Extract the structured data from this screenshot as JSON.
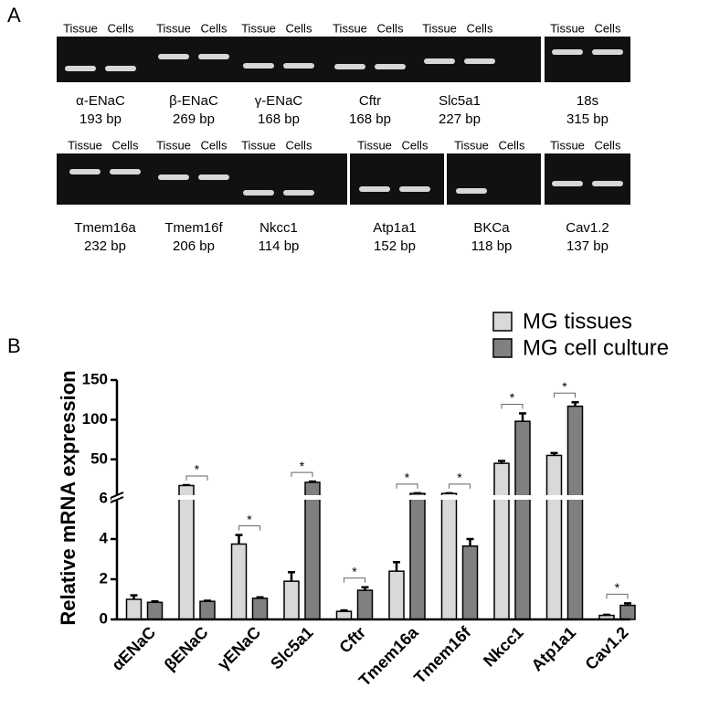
{
  "panel_a": {
    "label": "A",
    "lane_headers": [
      "Tissue",
      "Cells"
    ],
    "rows": [
      [
        {
          "name": "α-ENaC",
          "size": "193 bp"
        },
        {
          "name": "β-ENaC",
          "size": "269 bp"
        },
        {
          "name": "γ-ENaC",
          "size": "168 bp"
        },
        {
          "name": "Cftr",
          "size": "168 bp"
        },
        {
          "name": "Slc5a1",
          "size": "227 bp"
        },
        {
          "name": "18s",
          "size": "315 bp"
        }
      ],
      [
        {
          "name": "Tmem16a",
          "size": "232 bp"
        },
        {
          "name": "Tmem16f",
          "size": "206 bp"
        },
        {
          "name": "Nkcc1",
          "size": "114 bp"
        },
        {
          "name": "Atp1a1",
          "size": "152 bp"
        },
        {
          "name": "BKCa",
          "size": "118 bp"
        },
        {
          "name": "Cav1.2",
          "size": "137 bp"
        }
      ]
    ]
  },
  "chart_data": {
    "type": "bar",
    "panel_label": "B",
    "ylabel": "Relative mRNA expression",
    "categories": [
      "αENaC",
      "βENaC",
      "γENaC",
      "Slc5a1",
      "Cftr",
      "Tmem16a",
      "Tmem16f",
      "Nkcc1",
      "Atp1a1",
      "Cav1.2"
    ],
    "series": [
      {
        "name": "MG tissues",
        "color": "#d9d9d9",
        "values": [
          1.0,
          17,
          3.75,
          1.9,
          0.4,
          2.4,
          7,
          45,
          55,
          0.2
        ],
        "errors": [
          0.2,
          0.5,
          0.45,
          0.45,
          0.05,
          0.45,
          0.3,
          3,
          3,
          0.03
        ]
      },
      {
        "name": "MG cell culture",
        "color": "#808080",
        "values": [
          0.85,
          0.9,
          1.05,
          21,
          1.45,
          7,
          3.65,
          98,
          117,
          0.7
        ],
        "errors": [
          0.05,
          0.03,
          0.05,
          1,
          0.15,
          0.3,
          0.35,
          10,
          5,
          0.1
        ]
      }
    ],
    "significance": [
      null,
      "*",
      "*",
      "*",
      "*",
      "*",
      "*",
      "*",
      "*",
      "*"
    ],
    "y_segments": [
      {
        "ylim": [
          0,
          6
        ],
        "yticks": [
          0,
          2,
          4,
          6
        ]
      },
      {
        "ylim": [
          6,
          150
        ],
        "yticks": [
          50,
          100,
          150
        ]
      }
    ],
    "legend": "upper right"
  }
}
